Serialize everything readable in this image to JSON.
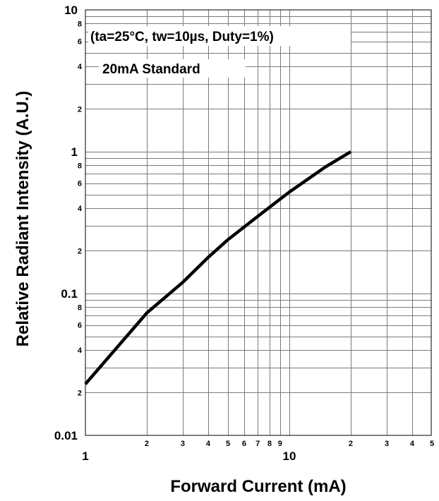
{
  "chart_data": {
    "type": "line",
    "xlabel": "Forward Current (mA)",
    "ylabel": "Relative Radiant Intensity (A.U.)",
    "x_scale": "log",
    "y_scale": "log",
    "xlim": [
      1,
      55
    ],
    "ylim": [
      0.01,
      10
    ],
    "annotations": [
      "(ta=25°C, tw=10µs, Duty=1%)",
      "20mA Standard"
    ],
    "x_major_ticks": [
      {
        "value": 1,
        "label": "1"
      },
      {
        "value": 10,
        "label": "10"
      }
    ],
    "x_minor_ticks": [
      {
        "value": 2,
        "label": "2"
      },
      {
        "value": 3,
        "label": "3"
      },
      {
        "value": 4,
        "label": "4"
      },
      {
        "value": 5,
        "label": "5"
      },
      {
        "value": 6,
        "label": "6"
      },
      {
        "value": 7,
        "label": "7"
      },
      {
        "value": 8,
        "label": "8"
      },
      {
        "value": 9,
        "label": "9"
      },
      {
        "value": 20,
        "label": "2"
      },
      {
        "value": 30,
        "label": "3"
      },
      {
        "value": 40,
        "label": "4"
      },
      {
        "value": 50,
        "label": "5"
      }
    ],
    "y_major_ticks": [
      {
        "value": 0.01,
        "label": "0.01"
      },
      {
        "value": 0.1,
        "label": "0.1"
      },
      {
        "value": 1,
        "label": "1"
      },
      {
        "value": 10,
        "label": "10"
      }
    ],
    "y_minor_ticks": [
      {
        "value": 0.02,
        "label": "2"
      },
      {
        "value": 0.04,
        "label": "4"
      },
      {
        "value": 0.06,
        "label": "6"
      },
      {
        "value": 0.08,
        "label": "8"
      },
      {
        "value": 0.2,
        "label": "2"
      },
      {
        "value": 0.4,
        "label": "4"
      },
      {
        "value": 0.6,
        "label": "6"
      },
      {
        "value": 0.8,
        "label": "8"
      },
      {
        "value": 2,
        "label": "2"
      },
      {
        "value": 4,
        "label": "4"
      },
      {
        "value": 6,
        "label": "6"
      },
      {
        "value": 8,
        "label": "8"
      }
    ],
    "y_unlabeled_gridlines": [
      0.03,
      0.05,
      0.07,
      0.09,
      0.3,
      0.5,
      0.7,
      0.9,
      3,
      5,
      7,
      9
    ],
    "grid": true,
    "series": [
      {
        "x": [
          1,
          2,
          3,
          4,
          5,
          7,
          10,
          15,
          20
        ],
        "y": [
          0.023,
          0.073,
          0.12,
          0.18,
          0.24,
          0.35,
          0.52,
          0.78,
          1.0
        ]
      }
    ]
  }
}
